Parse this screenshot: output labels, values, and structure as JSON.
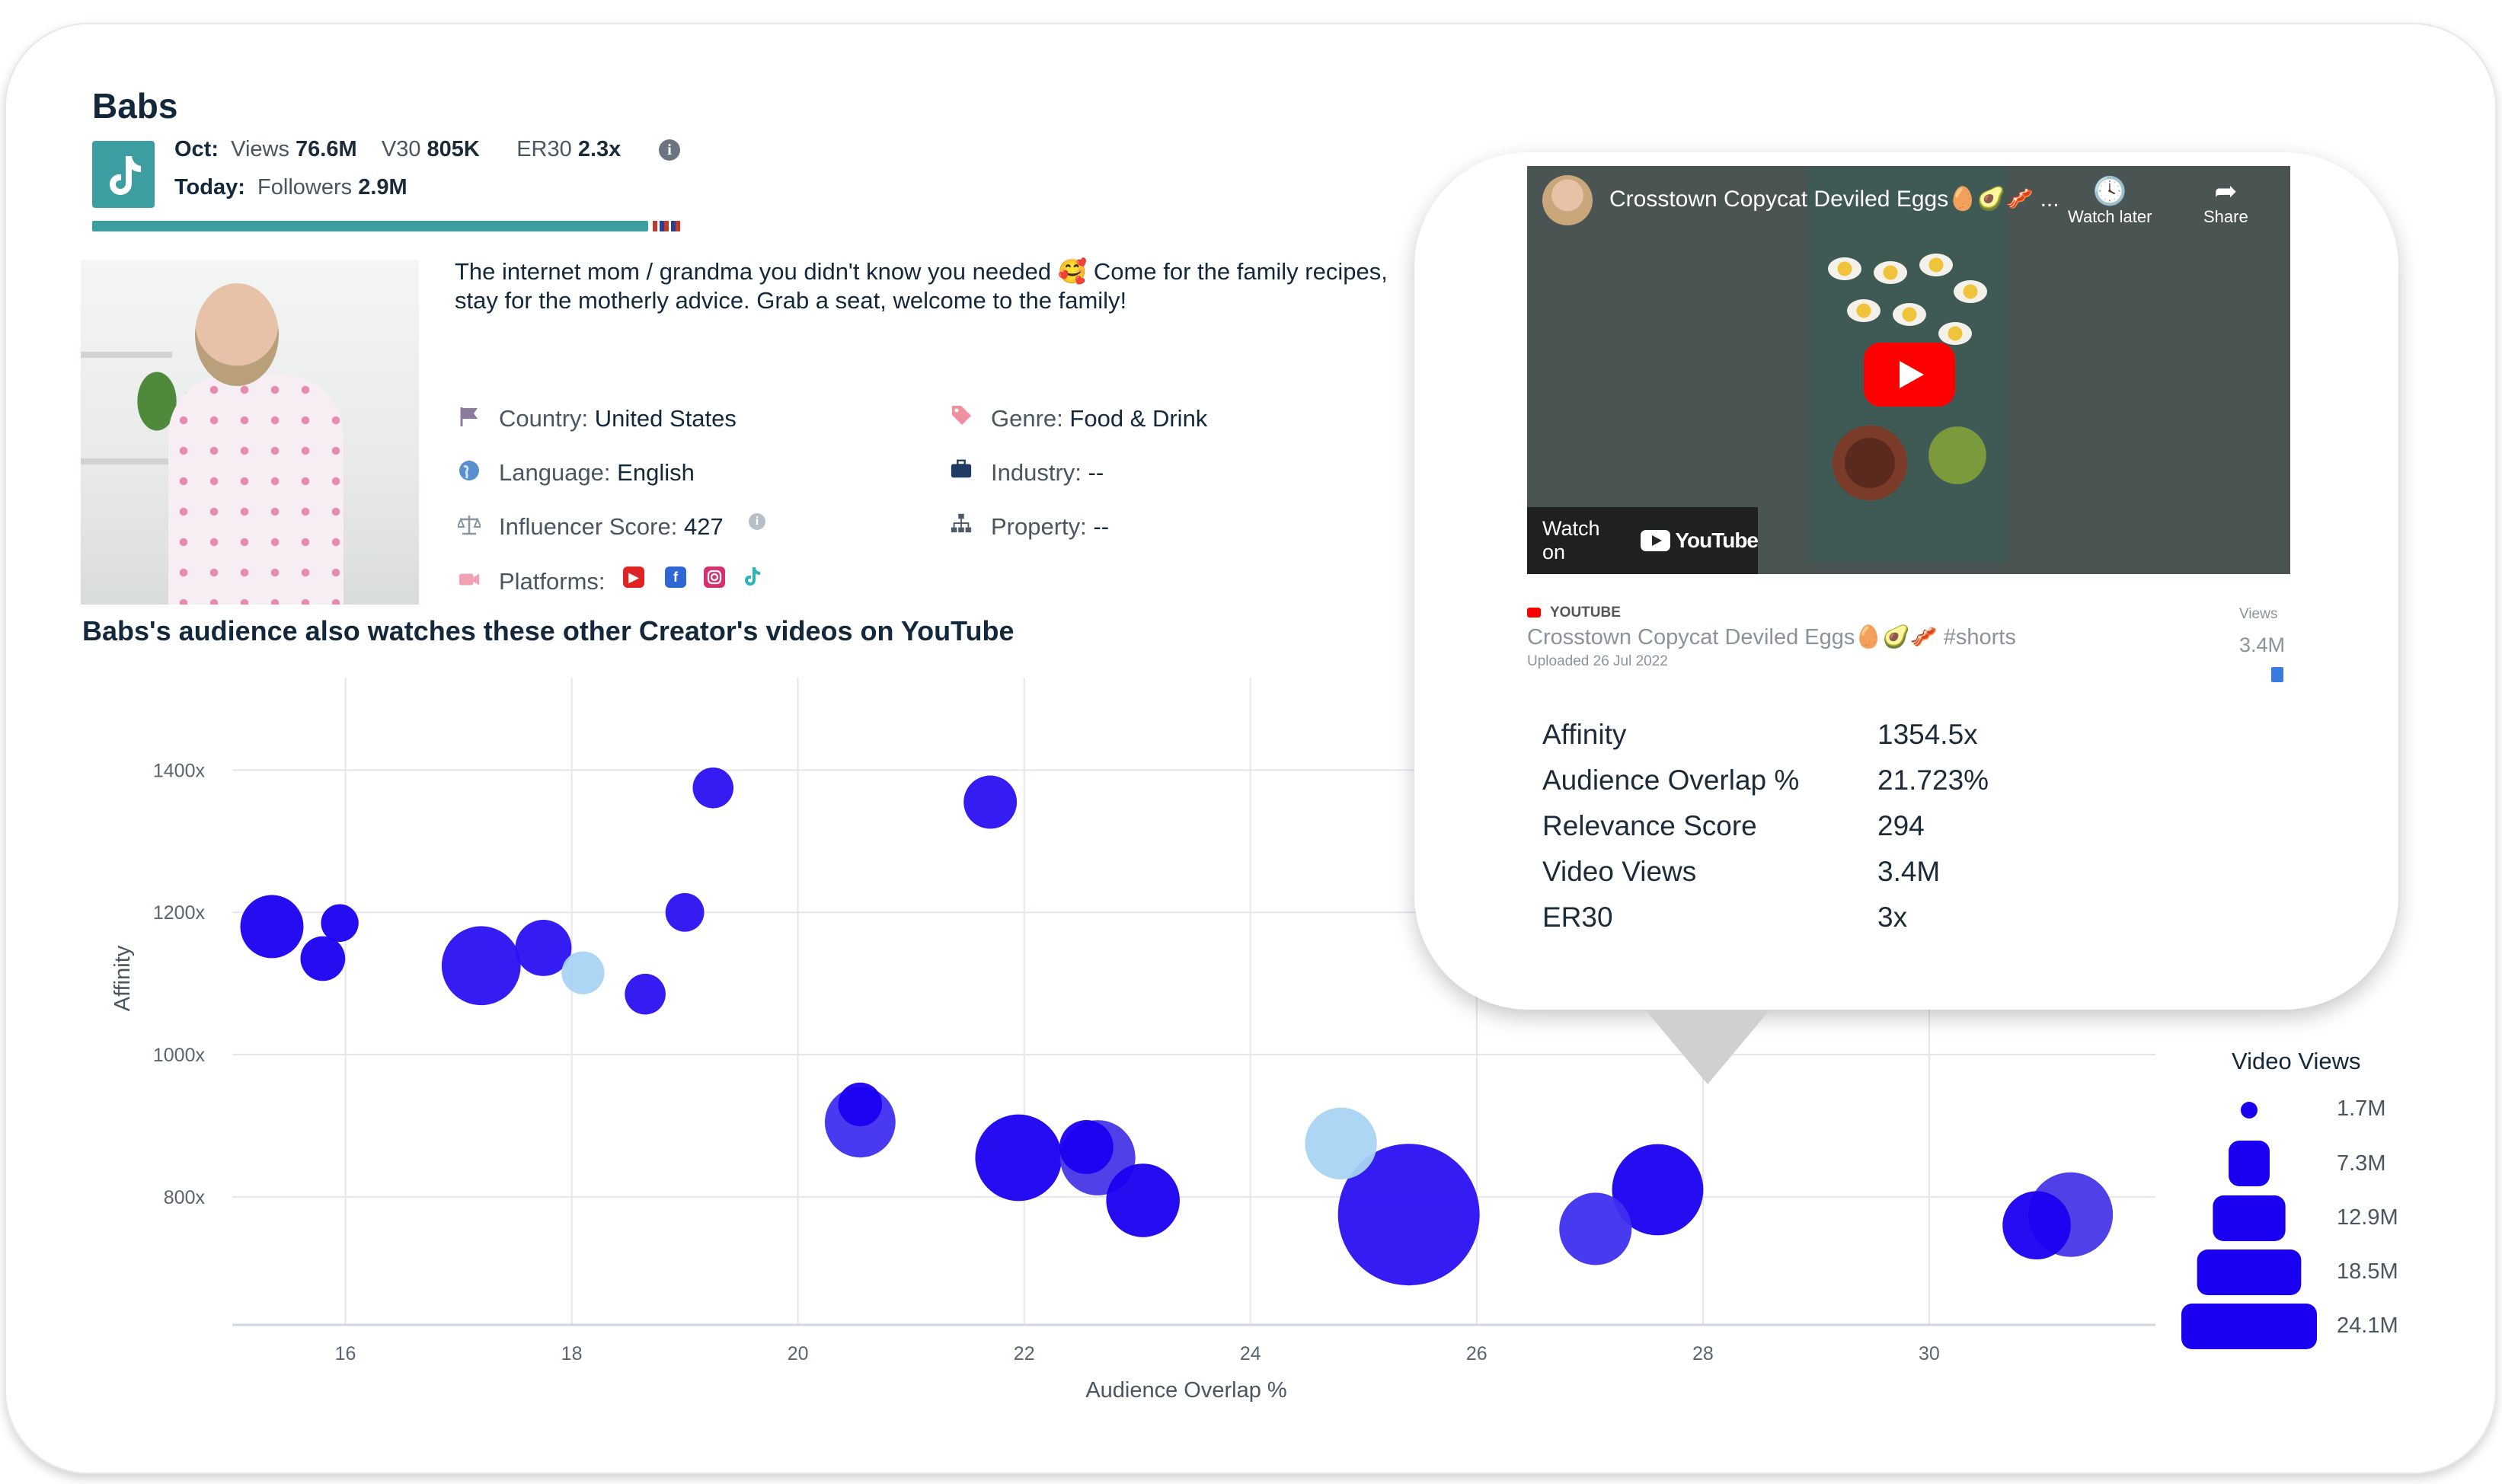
{
  "profile": {
    "name": "Babs",
    "month_label": "Oct:",
    "views_label": "Views",
    "views_value": "76.6M",
    "v30_label": "V30",
    "v30_value": "805K",
    "er30_label": "ER30",
    "er30_value": "2.3x",
    "today_label": "Today:",
    "followers_label": "Followers",
    "followers_value": "2.9M",
    "bio": "The internet mom / grandma you didn't know you needed 🥰 Come for the family recipes, stay for the motherly advice. Grab a seat, welcome to the family!",
    "country_label": "Country:",
    "country_value": "United States",
    "language_label": "Language:",
    "language_value": "English",
    "score_label": "Influencer Score:",
    "score_value": "427",
    "platforms_label": "Platforms:",
    "genre_label": "Genre:",
    "genre_value": "Food & Drink",
    "industry_label": "Industry:",
    "industry_value": "--",
    "property_label": "Property:",
    "property_value": "--",
    "icons": [
      "tiktok-icon",
      "info-icon",
      "flag-icon",
      "globe-icon",
      "scale-icon",
      "camera-icon",
      "tag-icon",
      "briefcase-icon",
      "sitemap-icon",
      "youtube-icon",
      "facebook-icon",
      "instagram-icon"
    ]
  },
  "section_title": "Babs's audience also watches these other Creator's videos on YouTube",
  "popup": {
    "video_title": "Crosstown Copycat Deviled Eggs🥚🥑🥓 ...",
    "watch_later": "Watch later",
    "share": "Share",
    "watch_on": "Watch on",
    "youtube_word": "YouTube",
    "source": "YOUTUBE",
    "title_full": "Crosstown Copycat Deviled Eggs🥚🥑🥓 #shorts",
    "uploaded": "Uploaded 26 Jul 2022",
    "views_label": "Views",
    "views_value": "3.4M",
    "stats": [
      {
        "label": "Affinity",
        "value": "1354.5x"
      },
      {
        "label": "Audience Overlap %",
        "value": "21.723%"
      },
      {
        "label": "Relevance Score",
        "value": "294"
      },
      {
        "label": "Video Views",
        "value": "3.4M"
      },
      {
        "label": "ER30",
        "value": "3x"
      }
    ]
  },
  "chart_data": {
    "type": "scatter",
    "xlabel": "Audience Overlap %",
    "ylabel": "Affinity",
    "xlim": [
      15,
      32
    ],
    "ylim": [
      620,
      1530
    ],
    "xticks": [
      16,
      18,
      20,
      22,
      24,
      26,
      28,
      30
    ],
    "yticks": [
      800,
      1000,
      1200,
      1400
    ],
    "ytick_labels": [
      "800x",
      "1000x",
      "1200x",
      "1400x"
    ],
    "size_legend": {
      "title": "Video Views",
      "labels": [
        "1.7M",
        "7.3M",
        "12.9M",
        "18.5M",
        "24.1M"
      ],
      "values": [
        1.7,
        7.3,
        12.9,
        18.5,
        24.1
      ]
    },
    "points": [
      {
        "x": 15.35,
        "y": 1180,
        "views": 4.8,
        "color": "#1a00f0"
      },
      {
        "x": 15.8,
        "y": 1135,
        "views": 2.4,
        "color": "#1a00f0"
      },
      {
        "x": 15.95,
        "y": 1185,
        "views": 1.7,
        "color": "#1a00f0"
      },
      {
        "x": 17.2,
        "y": 1125,
        "views": 7.5,
        "color": "#2a10f2"
      },
      {
        "x": 17.75,
        "y": 1150,
        "views": 3.8,
        "color": "#2a10f2"
      },
      {
        "x": 18.1,
        "y": 1115,
        "views": 2.2,
        "color": "#a9d3f3"
      },
      {
        "x": 18.65,
        "y": 1085,
        "views": 2.0,
        "color": "#2a10f2"
      },
      {
        "x": 19.0,
        "y": 1200,
        "views": 1.8,
        "color": "#2a10f2"
      },
      {
        "x": 19.25,
        "y": 1375,
        "views": 2.0,
        "color": "#2a10f2"
      },
      {
        "x": 21.7,
        "y": 1355,
        "views": 3.4,
        "color": "#2a10f2"
      },
      {
        "x": 20.55,
        "y": 905,
        "views": 6.0,
        "color": "#3e2ff0"
      },
      {
        "x": 20.55,
        "y": 930,
        "views": 2.3,
        "color": "#1a00f0"
      },
      {
        "x": 21.95,
        "y": 855,
        "views": 9.0,
        "color": "#1a00f0"
      },
      {
        "x": 22.65,
        "y": 855,
        "views": 6.8,
        "color": "#4637e6"
      },
      {
        "x": 22.55,
        "y": 870,
        "views": 3.5,
        "color": "#1a00f0"
      },
      {
        "x": 23.05,
        "y": 795,
        "views": 6.5,
        "color": "#1a00f0"
      },
      {
        "x": 24.8,
        "y": 875,
        "views": 6.2,
        "color": "#a9d3f3"
      },
      {
        "x": 25.4,
        "y": 775,
        "views": 24.1,
        "color": "#2a10f2"
      },
      {
        "x": 27.05,
        "y": 755,
        "views": 6.3,
        "color": "#3e2ff0"
      },
      {
        "x": 27.6,
        "y": 810,
        "views": 10.0,
        "color": "#1a00f0"
      },
      {
        "x": 31.25,
        "y": 775,
        "views": 8.6,
        "color": "#4637e6"
      },
      {
        "x": 30.95,
        "y": 760,
        "views": 5.6,
        "color": "#1a00f0"
      }
    ],
    "grid": true
  }
}
